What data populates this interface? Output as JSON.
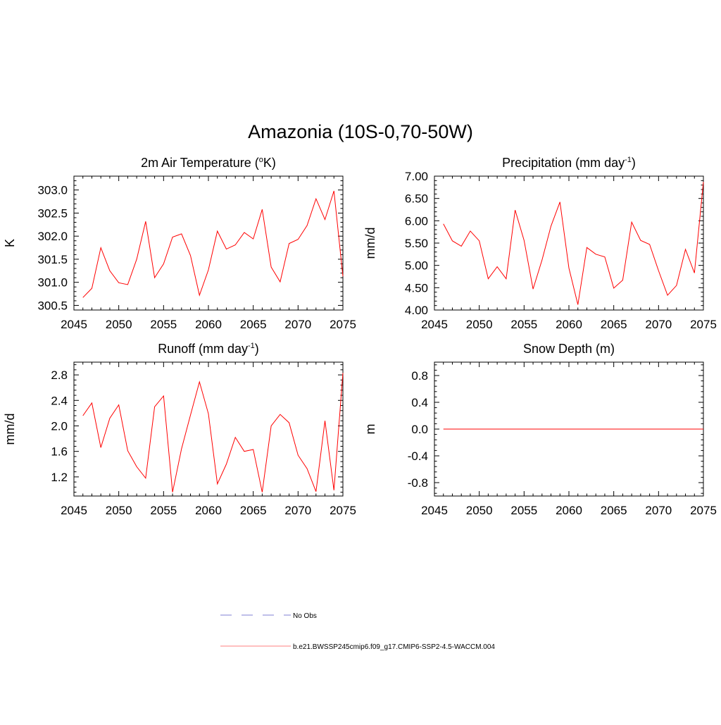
{
  "title": "Amazonia (10S-0,70-50W)",
  "chart_data": [
    {
      "type": "line",
      "title": "2m Air Temperature (°K)",
      "title_main": "2m Air Temperature (",
      "title_sup": "o",
      "title_tail": "K)",
      "ylabel": "K",
      "xlim": [
        2045,
        2075
      ],
      "ylim": [
        300.4,
        303.3
      ],
      "xticks": [
        2045,
        2050,
        2055,
        2060,
        2065,
        2070,
        2075
      ],
      "xtick_labels": [
        "2045",
        "2050",
        "2055",
        "2060",
        "2065",
        "2070",
        "2075"
      ],
      "yticks": [
        300.5,
        301.0,
        301.5,
        302.0,
        302.5,
        303.0
      ],
      "ytick_labels": [
        "300.5",
        "301.0",
        "301.5",
        "302.0",
        "302.5",
        "303.0"
      ],
      "x": [
        2046,
        2047,
        2048,
        2049,
        2050,
        2051,
        2052,
        2053,
        2054,
        2055,
        2056,
        2057,
        2058,
        2059,
        2060,
        2061,
        2062,
        2063,
        2064,
        2065,
        2066,
        2067,
        2068,
        2069,
        2070,
        2071,
        2072,
        2073,
        2074,
        2075
      ],
      "series": [
        {
          "name": "b.e21.BWSSP245cmip6.f09_g17.CMIP6-SSP2-4.5-WACCM.004",
          "color": "#ff0000",
          "values": [
            300.67,
            300.87,
            301.75,
            301.25,
            300.99,
            300.95,
            301.5,
            302.32,
            301.1,
            301.4,
            301.98,
            302.05,
            301.58,
            300.72,
            301.27,
            302.11,
            301.72,
            301.81,
            302.08,
            301.94,
            302.58,
            301.33,
            301.01,
            301.84,
            301.93,
            302.23,
            302.81,
            302.36,
            302.98,
            301.13
          ]
        }
      ]
    },
    {
      "type": "line",
      "title": "Precipitation (mm day-1)",
      "title_main": "Precipitation (mm day",
      "title_sup": "-1",
      "title_tail": ")",
      "ylabel": "mm/d",
      "xlim": [
        2045,
        2075
      ],
      "ylim": [
        4.0,
        7.0
      ],
      "xticks": [
        2045,
        2050,
        2055,
        2060,
        2065,
        2070,
        2075
      ],
      "xtick_labels": [
        "2045",
        "2050",
        "2055",
        "2060",
        "2065",
        "2070",
        "2075"
      ],
      "yticks": [
        4.0,
        4.5,
        5.0,
        5.5,
        6.0,
        6.5,
        7.0
      ],
      "ytick_labels": [
        "4.00",
        "4.50",
        "5.00",
        "5.50",
        "6.00",
        "6.50",
        "7.00"
      ],
      "x": [
        2046,
        2047,
        2048,
        2049,
        2050,
        2051,
        2052,
        2053,
        2054,
        2055,
        2056,
        2057,
        2058,
        2059,
        2060,
        2061,
        2062,
        2063,
        2064,
        2065,
        2066,
        2067,
        2068,
        2069,
        2070,
        2071,
        2072,
        2073,
        2074,
        2075
      ],
      "series": [
        {
          "name": "b.e21.BWSSP245cmip6.f09_g17.CMIP6-SSP2-4.5-WACCM.004",
          "color": "#ff0000",
          "values": [
            5.93,
            5.55,
            5.43,
            5.77,
            5.55,
            4.7,
            4.97,
            4.7,
            6.24,
            5.56,
            4.47,
            5.12,
            5.88,
            6.42,
            4.94,
            4.12,
            5.4,
            5.25,
            5.19,
            4.49,
            4.67,
            5.97,
            5.56,
            5.47,
            4.88,
            4.33,
            4.55,
            5.36,
            4.83,
            6.87
          ]
        }
      ]
    },
    {
      "type": "line",
      "title": "Runoff (mm day-1)",
      "title_main": "Runoff (mm day",
      "title_sup": "-1",
      "title_tail": ")",
      "ylabel": "mm/d",
      "xlim": [
        2045,
        2075
      ],
      "ylim": [
        0.9,
        3.0
      ],
      "xticks": [
        2045,
        2050,
        2055,
        2060,
        2065,
        2070,
        2075
      ],
      "xtick_labels": [
        "2045",
        "2050",
        "2055",
        "2060",
        "2065",
        "2070",
        "2075"
      ],
      "yticks": [
        1.2,
        1.6,
        2.0,
        2.4,
        2.8
      ],
      "ytick_labels": [
        "1.2",
        "1.6",
        "2.0",
        "2.4",
        "2.8"
      ],
      "x": [
        2046,
        2047,
        2048,
        2049,
        2050,
        2051,
        2052,
        2053,
        2054,
        2055,
        2056,
        2057,
        2058,
        2059,
        2060,
        2061,
        2062,
        2063,
        2064,
        2065,
        2066,
        2067,
        2068,
        2069,
        2070,
        2071,
        2072,
        2073,
        2074,
        2075
      ],
      "series": [
        {
          "name": "b.e21.BWSSP245cmip6.f09_g17.CMIP6-SSP2-4.5-WACCM.004",
          "color": "#ff0000",
          "values": [
            2.16,
            2.36,
            1.66,
            2.12,
            2.33,
            1.61,
            1.36,
            1.18,
            2.3,
            2.47,
            0.96,
            1.64,
            2.17,
            2.69,
            2.19,
            1.09,
            1.4,
            1.82,
            1.6,
            1.63,
            0.96,
            2.0,
            2.18,
            2.05,
            1.54,
            1.33,
            0.97,
            2.08,
            0.99,
            2.83
          ]
        }
      ]
    },
    {
      "type": "line",
      "title": "Snow Depth (m)",
      "title_main": "Snow Depth (m)",
      "title_sup": "",
      "title_tail": "",
      "ylabel": "m",
      "xlim": [
        2045,
        2075
      ],
      "ylim": [
        -1.0,
        1.0
      ],
      "xticks": [
        2045,
        2050,
        2055,
        2060,
        2065,
        2070,
        2075
      ],
      "xtick_labels": [
        "2045",
        "2050",
        "2055",
        "2060",
        "2065",
        "2070",
        "2075"
      ],
      "yticks": [
        -0.8,
        -0.4,
        0.0,
        0.4,
        0.8
      ],
      "ytick_labels": [
        "-0.8",
        "-0.4",
        "0.0",
        "0.4",
        "0.8"
      ],
      "x": [
        2046,
        2047,
        2048,
        2049,
        2050,
        2051,
        2052,
        2053,
        2054,
        2055,
        2056,
        2057,
        2058,
        2059,
        2060,
        2061,
        2062,
        2063,
        2064,
        2065,
        2066,
        2067,
        2068,
        2069,
        2070,
        2071,
        2072,
        2073,
        2074,
        2075
      ],
      "series": [
        {
          "name": "b.e21.BWSSP245cmip6.f09_g17.CMIP6-SSP2-4.5-WACCM.004",
          "color": "#ff0000",
          "values": [
            0,
            0,
            0,
            0,
            0,
            0,
            0,
            0,
            0,
            0,
            0,
            0,
            0,
            0,
            0,
            0,
            0,
            0,
            0,
            0,
            0,
            0,
            0,
            0,
            0,
            0,
            0,
            0,
            0,
            0
          ]
        }
      ]
    }
  ],
  "legend": [
    {
      "label": "No Obs",
      "color": "#9999dd",
      "style": "dashed"
    },
    {
      "label": "b.e21.BWSSP245cmip6.f09_g17.CMIP6-SSP2-4.5-WACCM.004",
      "color": "#ff9999",
      "style": "solid"
    }
  ]
}
